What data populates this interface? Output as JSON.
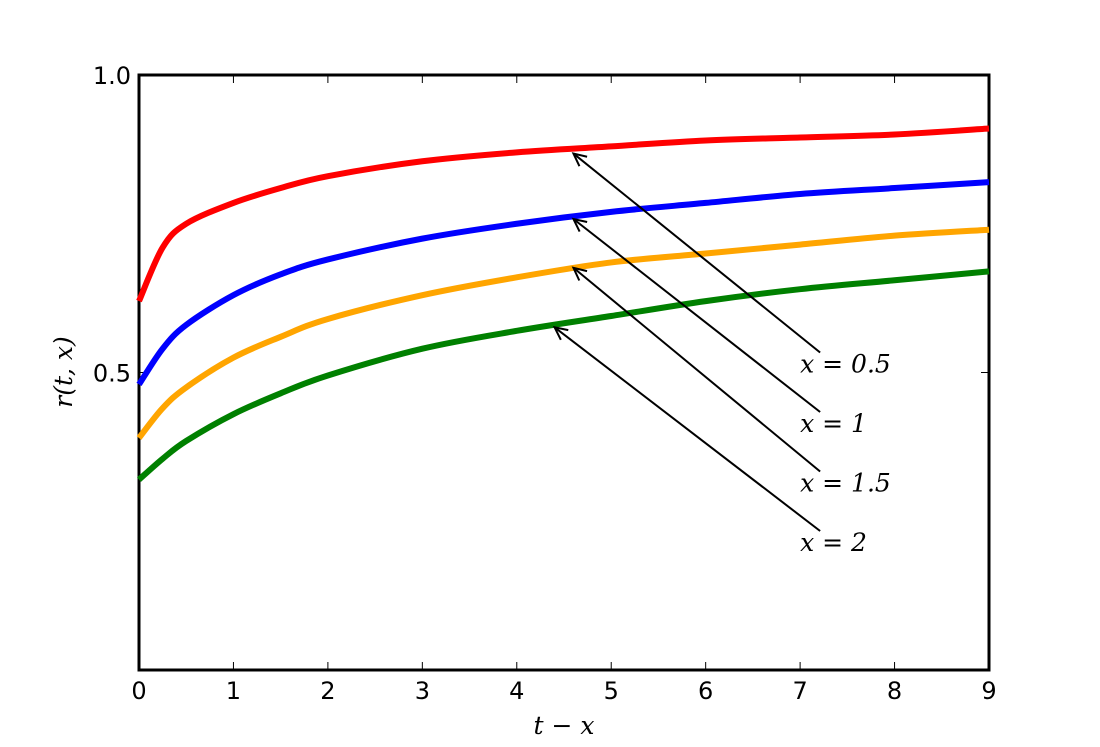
{
  "chart_data": {
    "type": "line",
    "title": "",
    "xlabel": "t − x",
    "ylabel": "r(t, x)",
    "xlim": [
      0,
      9
    ],
    "ylim": [
      0,
      1
    ],
    "x_ticks": [
      0,
      1,
      2,
      3,
      4,
      5,
      6,
      7,
      8,
      9
    ],
    "x_tick_labels": [
      "0",
      "1",
      "2",
      "3",
      "4",
      "5",
      "6",
      "7",
      "8",
      "9"
    ],
    "y_ticks": [
      0.5,
      1.0
    ],
    "y_tick_labels": [
      "0.5",
      "1.0"
    ],
    "grid": false,
    "legend": "none",
    "x": [
      0,
      0.25,
      0.5,
      1,
      1.5,
      2,
      3,
      4,
      5,
      6,
      7,
      8,
      9
    ],
    "series": [
      {
        "color": "#ff0000",
        "values": [
          0.62,
          0.71,
          0.75,
          0.785,
          0.81,
          0.83,
          0.855,
          0.87,
          0.88,
          0.89,
          0.895,
          0.9,
          0.91
        ]
      },
      {
        "color": "#0000ff",
        "values": [
          0.48,
          0.54,
          0.58,
          0.63,
          0.665,
          0.69,
          0.725,
          0.75,
          0.77,
          0.785,
          0.8,
          0.81,
          0.82
        ]
      },
      {
        "color": "#ffa500",
        "values": [
          0.39,
          0.44,
          0.475,
          0.525,
          0.56,
          0.59,
          0.63,
          0.66,
          0.685,
          0.7,
          0.715,
          0.73,
          0.74
        ]
      },
      {
        "color": "#008000",
        "values": [
          0.32,
          0.355,
          0.385,
          0.43,
          0.465,
          0.495,
          0.54,
          0.57,
          0.595,
          0.62,
          0.64,
          0.655,
          0.67
        ]
      }
    ],
    "annotations": [
      {
        "text": "x = 0.5",
        "xy": [
          4.6,
          0.868
        ],
        "xytext": [
          7.0,
          0.5
        ]
      },
      {
        "text": "x = 1",
        "xy": [
          4.6,
          0.758
        ],
        "xytext": [
          7.0,
          0.4
        ]
      },
      {
        "text": "x = 1.5",
        "xy": [
          4.6,
          0.676
        ],
        "xytext": [
          7.0,
          0.3
        ]
      },
      {
        "text": "x = 2",
        "xy": [
          4.4,
          0.576
        ],
        "xytext": [
          7.0,
          0.2
        ]
      }
    ]
  }
}
